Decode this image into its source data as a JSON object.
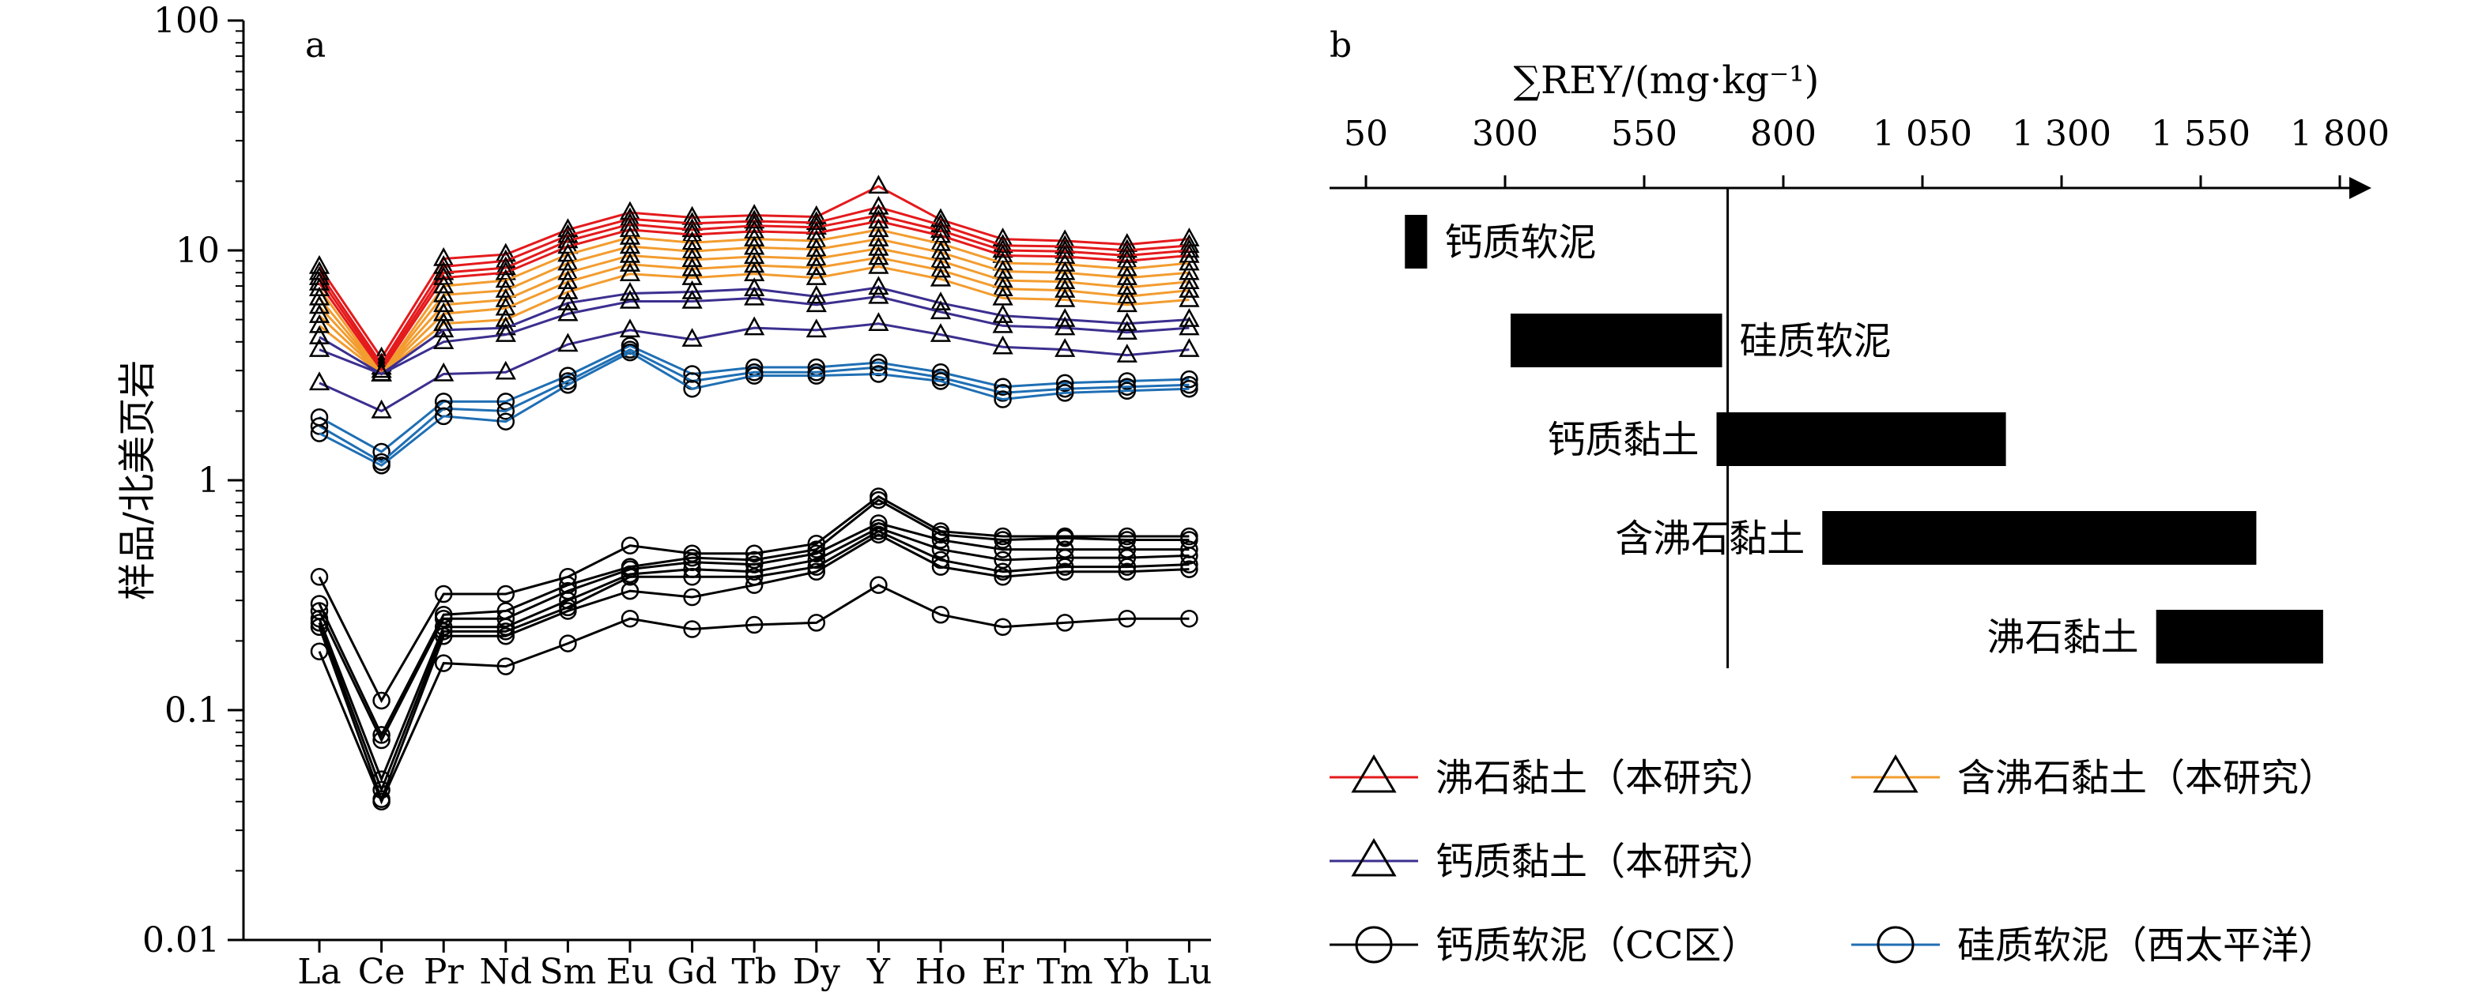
{
  "panel_a": {
    "label": "a",
    "ylabel": "样品/北美页岩",
    "yticks": [
      "100",
      "10",
      "1",
      "0.1",
      "0.01"
    ],
    "categories": [
      "La",
      "Ce",
      "Pr",
      "Nd",
      "Sm",
      "Eu",
      "Gd",
      "Tb",
      "Dy",
      "Y",
      "Ho",
      "Er",
      "Tm",
      "Yb",
      "Lu"
    ]
  },
  "panel_b": {
    "label": "b",
    "xlabel": "∑REY/(mg·kg⁻¹)",
    "xticks": [
      "50",
      "300",
      "550",
      "800",
      "1 050",
      "1 300",
      "1 550",
      "1 800"
    ],
    "bars": [
      {
        "name": "钙质软泥",
        "min": 120,
        "max": 160
      },
      {
        "name": "硅质软泥",
        "min": 310,
        "max": 690
      },
      {
        "name": "钙质黏土",
        "min": 680,
        "max": 1200
      },
      {
        "name": "含沸石黏土",
        "min": 870,
        "max": 1650
      },
      {
        "name": "沸石黏土",
        "min": 1470,
        "max": 1770
      }
    ],
    "reference_line": 700
  },
  "legend": [
    {
      "label": "沸石黏土（本研究）",
      "color": "#e41a1c",
      "marker": "triangle"
    },
    {
      "label": "含沸石黏土（本研究）",
      "color": "#f39c2f",
      "marker": "triangle"
    },
    {
      "label": "钙质黏土（本研究）",
      "color": "#3b2f8f",
      "marker": "triangle"
    },
    {
      "label": "钙质软泥（CC区）",
      "color": "#000000",
      "marker": "circle"
    },
    {
      "label": "硅质软泥（西太平洋）",
      "color": "#1f6fb4",
      "marker": "circle"
    }
  ],
  "chart_data": [
    {
      "type": "line",
      "title": "",
      "xlabel": "",
      "ylabel": "样品/北美页岩",
      "y_scale": "log",
      "ylim": [
        0.01,
        100
      ],
      "categories": [
        "La",
        "Ce",
        "Pr",
        "Nd",
        "Sm",
        "Eu",
        "Gd",
        "Tb",
        "Dy",
        "Y",
        "Ho",
        "Er",
        "Tm",
        "Yb",
        "Lu"
      ],
      "series": [
        {
          "name": "沸石黏土（本研究）",
          "values": [
            8.5,
            3.4,
            9.2,
            9.6,
            12.3,
            14.6,
            13.9,
            14.2,
            14.0,
            19.0,
            13.6,
            11.2,
            11.0,
            10.6,
            11.2
          ]
        },
        {
          "name": "沸石黏土（本研究）",
          "values": [
            8.0,
            3.2,
            8.5,
            9.0,
            11.6,
            13.7,
            13.1,
            13.4,
            13.2,
            15.4,
            12.9,
            10.5,
            10.4,
            10.0,
            10.5
          ]
        },
        {
          "name": "沸石黏土（本研究）",
          "values": [
            7.6,
            3.1,
            8.0,
            8.4,
            11.0,
            13.0,
            12.3,
            12.8,
            12.6,
            14.2,
            12.2,
            10.0,
            9.9,
            9.5,
            10.0
          ]
        },
        {
          "name": "沸石黏土（本研究）",
          "values": [
            7.2,
            3.0,
            7.6,
            8.0,
            10.4,
            12.3,
            11.7,
            12.1,
            11.9,
            13.4,
            11.6,
            9.5,
            9.4,
            9.0,
            9.5
          ]
        },
        {
          "name": "含沸石黏土（本研究）",
          "values": [
            6.8,
            2.9,
            7.0,
            7.4,
            9.6,
            11.4,
            10.8,
            11.2,
            11.0,
            12.3,
            10.7,
            8.8,
            8.7,
            8.3,
            8.8
          ]
        },
        {
          "name": "含沸石黏土（本研究）",
          "values": [
            6.2,
            2.9,
            6.4,
            6.7,
            8.8,
            10.4,
            9.9,
            10.3,
            10.1,
            11.2,
            9.8,
            8.1,
            8.0,
            7.6,
            8.0
          ]
        },
        {
          "name": "含沸石黏土（本研究）",
          "values": [
            5.7,
            2.9,
            5.8,
            6.1,
            8.0,
            9.5,
            9.1,
            9.4,
            9.2,
            10.2,
            9.0,
            7.4,
            7.3,
            6.9,
            7.3
          ]
        },
        {
          "name": "含沸石黏土（本研究）",
          "values": [
            5.2,
            2.9,
            5.3,
            5.6,
            7.3,
            8.7,
            8.3,
            8.6,
            8.4,
            9.3,
            8.2,
            6.8,
            6.7,
            6.3,
            6.7
          ]
        },
        {
          "name": "含沸石黏土（本研究）",
          "values": [
            4.7,
            2.9,
            4.8,
            5.0,
            6.6,
            7.9,
            7.6,
            7.9,
            7.6,
            8.5,
            7.5,
            6.2,
            6.1,
            5.8,
            6.1
          ]
        },
        {
          "name": "钙质黏土（本研究）",
          "values": [
            4.2,
            2.9,
            4.5,
            4.6,
            5.9,
            6.5,
            6.6,
            6.8,
            6.3,
            6.9,
            5.9,
            5.2,
            5.0,
            4.8,
            5.0
          ]
        },
        {
          "name": "钙质黏土（本研究）",
          "values": [
            3.7,
            2.9,
            4.0,
            4.3,
            5.3,
            6.0,
            6.0,
            6.2,
            5.8,
            6.3,
            5.4,
            4.7,
            4.6,
            4.4,
            4.6
          ]
        },
        {
          "name": "钙质黏土（本研究）",
          "values": [
            2.65,
            2.0,
            2.9,
            2.95,
            3.9,
            4.5,
            4.1,
            4.6,
            4.5,
            4.8,
            4.3,
            3.8,
            3.7,
            3.5,
            3.7
          ]
        },
        {
          "name": "硅质软泥（西太平洋）",
          "values": [
            1.88,
            1.33,
            2.2,
            2.2,
            2.85,
            3.85,
            2.9,
            3.1,
            3.1,
            3.25,
            2.95,
            2.55,
            2.65,
            2.7,
            2.75
          ]
        },
        {
          "name": "硅质软泥（西太平洋）",
          "values": [
            1.72,
            1.2,
            2.05,
            2.0,
            2.7,
            3.7,
            2.7,
            2.95,
            2.95,
            3.1,
            2.8,
            2.4,
            2.5,
            2.55,
            2.6
          ]
        },
        {
          "name": "硅质软泥（西太平洋）",
          "values": [
            1.6,
            1.16,
            1.9,
            1.8,
            2.6,
            3.6,
            2.5,
            2.85,
            2.85,
            2.9,
            2.7,
            2.25,
            2.4,
            2.45,
            2.5
          ]
        },
        {
          "name": "钙质软泥（CC区）",
          "values": [
            0.38,
            0.11,
            0.32,
            0.32,
            0.38,
            0.52,
            0.48,
            0.48,
            0.53,
            0.85,
            0.6,
            0.57,
            0.57,
            0.57,
            0.57
          ]
        },
        {
          "name": "钙质软泥（CC区）",
          "values": [
            0.29,
            0.078,
            0.26,
            0.27,
            0.35,
            0.42,
            0.46,
            0.45,
            0.5,
            0.82,
            0.58,
            0.55,
            0.56,
            0.55,
            0.55
          ]
        },
        {
          "name": "钙质软泥（CC区）",
          "values": [
            0.27,
            0.074,
            0.25,
            0.25,
            0.33,
            0.41,
            0.44,
            0.43,
            0.48,
            0.65,
            0.55,
            0.5,
            0.5,
            0.5,
            0.5
          ]
        },
        {
          "name": "钙质软泥（CC区）",
          "values": [
            0.25,
            0.05,
            0.23,
            0.23,
            0.3,
            0.39,
            0.41,
            0.4,
            0.45,
            0.62,
            0.5,
            0.45,
            0.46,
            0.46,
            0.47
          ]
        },
        {
          "name": "钙质软泥（CC区）",
          "values": [
            0.24,
            0.045,
            0.22,
            0.22,
            0.28,
            0.38,
            0.38,
            0.38,
            0.42,
            0.6,
            0.45,
            0.4,
            0.42,
            0.42,
            0.43
          ]
        },
        {
          "name": "钙质软泥（CC区）",
          "values": [
            0.23,
            0.041,
            0.21,
            0.21,
            0.27,
            0.33,
            0.31,
            0.35,
            0.4,
            0.58,
            0.42,
            0.38,
            0.4,
            0.4,
            0.41
          ]
        },
        {
          "name": "钙质软泥（CC区）",
          "values": [
            0.18,
            0.04,
            0.16,
            0.155,
            0.195,
            0.25,
            0.225,
            0.235,
            0.24,
            0.35,
            0.26,
            0.23,
            0.24,
            0.25,
            0.25
          ]
        }
      ]
    },
    {
      "type": "bar",
      "orientation": "horizontal",
      "title": "",
      "xlabel": "∑REY/(mg·kg⁻¹)",
      "xlim": [
        50,
        1880
      ],
      "categories": [
        "钙质软泥",
        "硅质软泥",
        "钙质黏土",
        "含沸石黏土",
        "沸石黏土"
      ],
      "ranges": [
        [
          120,
          160
        ],
        [
          310,
          690
        ],
        [
          680,
          1200
        ],
        [
          870,
          1650
        ],
        [
          1470,
          1770
        ]
      ],
      "reference_line": 700
    }
  ]
}
